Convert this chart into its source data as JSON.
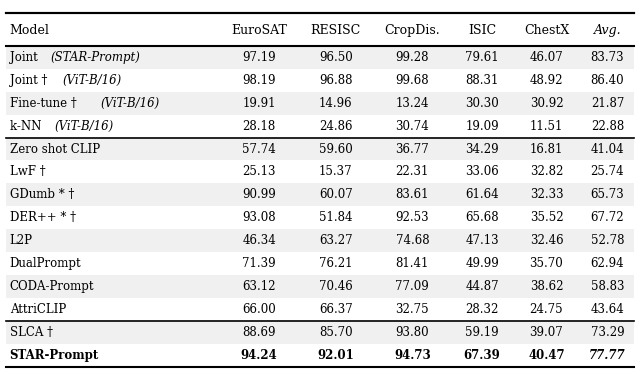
{
  "columns": [
    "Model",
    "EuroSAT",
    "RESISC",
    "CropDis.",
    "ISIC",
    "ChestX",
    "Avg."
  ],
  "col_header_styles": [
    "normal",
    "normal",
    "normal",
    "normal",
    "normal",
    "normal",
    "italic"
  ],
  "rows": [
    {
      "model": "Joint (STAR-Prompt)",
      "model_style": "mixed_italic",
      "values": [
        "97.19",
        "96.50",
        "99.28",
        "79.61",
        "46.07",
        "83.73"
      ],
      "bg": "#f0f0f0",
      "bold": false
    },
    {
      "model": "Joint † (ViT-B/16)",
      "model_style": "mixed_italic",
      "values": [
        "98.19",
        "96.88",
        "99.68",
        "88.31",
        "48.92",
        "86.40"
      ],
      "bg": "#ffffff",
      "bold": false
    },
    {
      "model": "Fine-tune † (ViT-B/16)",
      "model_style": "mixed_italic",
      "values": [
        "19.91",
        "14.96",
        "13.24",
        "30.30",
        "30.92",
        "21.87"
      ],
      "bg": "#f0f0f0",
      "bold": false
    },
    {
      "model": "k-NN (ViT-B/16)",
      "model_style": "mixed_italic",
      "values": [
        "28.18",
        "24.86",
        "30.74",
        "19.09",
        "11.51",
        "22.88"
      ],
      "bg": "#ffffff",
      "bold": false
    },
    {
      "model": "Zero shot CLIP",
      "model_style": "normal",
      "values": [
        "57.74",
        "59.60",
        "36.77",
        "34.29",
        "16.81",
        "41.04"
      ],
      "bg": "#f0f0f0",
      "bold": false
    },
    {
      "model": "LwF †",
      "model_style": "normal",
      "values": [
        "25.13",
        "15.37",
        "22.31",
        "33.06",
        "32.82",
        "25.74"
      ],
      "bg": "#ffffff",
      "bold": false
    },
    {
      "model": "GDumb * †",
      "model_style": "normal",
      "values": [
        "90.99",
        "60.07",
        "83.61",
        "61.64",
        "32.33",
        "65.73"
      ],
      "bg": "#f0f0f0",
      "bold": false
    },
    {
      "model": "DER++ * †",
      "model_style": "normal",
      "values": [
        "93.08",
        "51.84",
        "92.53",
        "65.68",
        "35.52",
        "67.72"
      ],
      "bg": "#ffffff",
      "bold": false
    },
    {
      "model": "L2P",
      "model_style": "normal",
      "values": [
        "46.34",
        "63.27",
        "74.68",
        "47.13",
        "32.46",
        "52.78"
      ],
      "bg": "#f0f0f0",
      "bold": false
    },
    {
      "model": "DualPrompt",
      "model_style": "normal",
      "values": [
        "71.39",
        "76.21",
        "81.41",
        "49.99",
        "35.70",
        "62.94"
      ],
      "bg": "#ffffff",
      "bold": false
    },
    {
      "model": "CODA-Prompt",
      "model_style": "normal",
      "values": [
        "63.12",
        "70.46",
        "77.09",
        "44.87",
        "38.62",
        "58.83"
      ],
      "bg": "#f0f0f0",
      "bold": false
    },
    {
      "model": "AttriCLIP",
      "model_style": "normal",
      "values": [
        "66.00",
        "66.37",
        "32.75",
        "28.32",
        "24.75",
        "43.64"
      ],
      "bg": "#ffffff",
      "bold": false
    },
    {
      "model": "SLCA †",
      "model_style": "normal",
      "values": [
        "88.69",
        "85.70",
        "93.80",
        "59.19",
        "39.07",
        "73.29"
      ],
      "bg": "#f0f0f0",
      "bold": false
    },
    {
      "model": "STAR-Prompt",
      "model_style": "bold",
      "values": [
        "94.24",
        "92.01",
        "94.73",
        "67.39",
        "40.47",
        "77.77"
      ],
      "bg": "#ffffff",
      "bold": true
    }
  ],
  "separator_after": [
    4,
    12
  ],
  "thick_line_after": [
    0,
    13
  ],
  "fig_width": 6.4,
  "fig_height": 3.74,
  "bg_color": "#ffffff",
  "font_size": 8.5,
  "header_font_size": 9.0
}
